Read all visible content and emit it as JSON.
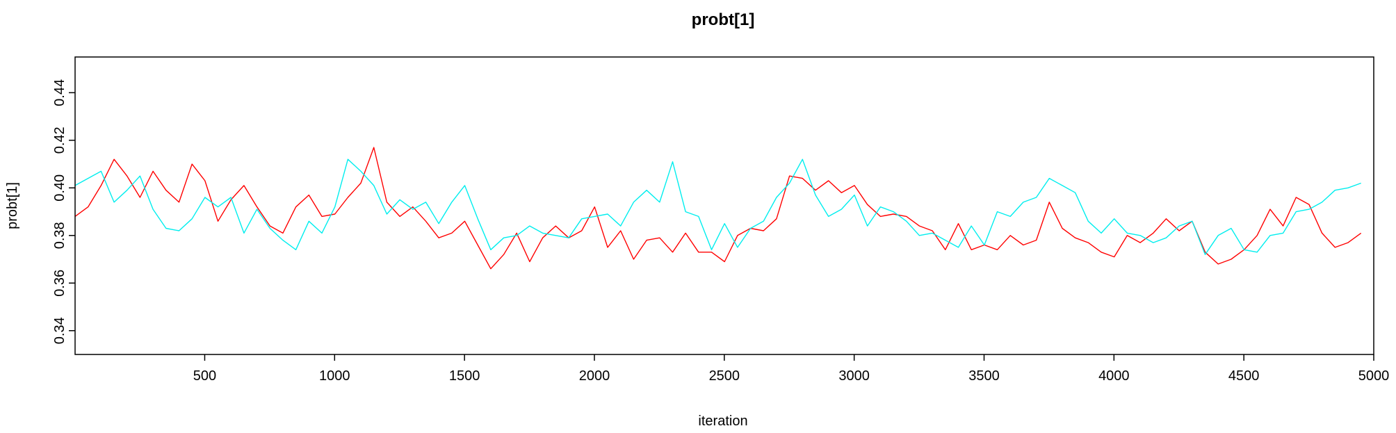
{
  "chart_data": {
    "type": "line",
    "title": "probt[1]",
    "xlabel": "iteration",
    "ylabel": "probt[1]",
    "xlim": [
      1,
      5000
    ],
    "ylim": [
      0.33,
      0.455
    ],
    "x_ticks": [
      500,
      1000,
      1500,
      2000,
      2500,
      3000,
      3500,
      4000,
      4500,
      5000
    ],
    "y_ticks": [
      "0.34",
      "0.36",
      "0.38",
      "0.40",
      "0.42",
      "0.44"
    ],
    "grid": false,
    "legend": "none",
    "x_sampling": {
      "start": 1,
      "step": 50,
      "count": 100
    },
    "series": [
      {
        "color": "#ff0000",
        "values": [
          0.388,
          0.392,
          0.401,
          0.412,
          0.405,
          0.396,
          0.407,
          0.399,
          0.394,
          0.41,
          0.403,
          0.386,
          0.395,
          0.401,
          0.392,
          0.384,
          0.381,
          0.392,
          0.397,
          0.388,
          0.389,
          0.396,
          0.402,
          0.417,
          0.394,
          0.388,
          0.392,
          0.386,
          0.379,
          0.381,
          0.386,
          0.376,
          0.366,
          0.372,
          0.381,
          0.369,
          0.379,
          0.384,
          0.379,
          0.382,
          0.392,
          0.375,
          0.382,
          0.37,
          0.378,
          0.379,
          0.373,
          0.381,
          0.373,
          0.373,
          0.369,
          0.38,
          0.383,
          0.382,
          0.387,
          0.405,
          0.404,
          0.399,
          0.403,
          0.398,
          0.401,
          0.393,
          0.388,
          0.389,
          0.388,
          0.384,
          0.382,
          0.374,
          0.385,
          0.374,
          0.376,
          0.374,
          0.38,
          0.376,
          0.378,
          0.394,
          0.383,
          0.379,
          0.377,
          0.373,
          0.371,
          0.38,
          0.377,
          0.381,
          0.387,
          0.382,
          0.386,
          0.373,
          0.368,
          0.37,
          0.374,
          0.38,
          0.391,
          0.384,
          0.396,
          0.393,
          0.381,
          0.375,
          0.377,
          0.381
        ]
      },
      {
        "color": "#00eeee",
        "values": [
          0.401,
          0.404,
          0.407,
          0.394,
          0.399,
          0.405,
          0.391,
          0.383,
          0.382,
          0.387,
          0.396,
          0.392,
          0.396,
          0.381,
          0.391,
          0.383,
          0.378,
          0.374,
          0.386,
          0.381,
          0.392,
          0.412,
          0.407,
          0.401,
          0.389,
          0.395,
          0.391,
          0.394,
          0.385,
          0.394,
          0.401,
          0.387,
          0.374,
          0.379,
          0.38,
          0.384,
          0.381,
          0.38,
          0.379,
          0.387,
          0.388,
          0.389,
          0.384,
          0.394,
          0.399,
          0.394,
          0.411,
          0.39,
          0.388,
          0.374,
          0.385,
          0.375,
          0.383,
          0.386,
          0.396,
          0.402,
          0.412,
          0.397,
          0.388,
          0.391,
          0.397,
          0.384,
          0.392,
          0.39,
          0.386,
          0.38,
          0.381,
          0.378,
          0.375,
          0.384,
          0.376,
          0.39,
          0.388,
          0.394,
          0.396,
          0.404,
          0.401,
          0.398,
          0.386,
          0.381,
          0.387,
          0.381,
          0.38,
          0.377,
          0.379,
          0.384,
          0.386,
          0.372,
          0.38,
          0.383,
          0.374,
          0.373,
          0.38,
          0.381,
          0.39,
          0.391,
          0.394,
          0.399,
          0.4,
          0.402
        ]
      }
    ]
  }
}
